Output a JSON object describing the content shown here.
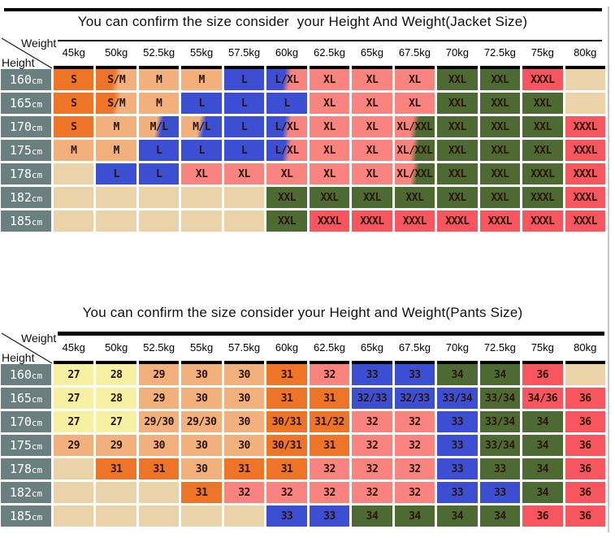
{
  "colors": {
    "orange": "#EE7428",
    "tan": "#F2B07C",
    "wheat": "#EBD3A9",
    "blue": "#3C4FD3",
    "pink": "#F9837E",
    "green": "#4D6A32",
    "red": "#F7565E",
    "yellow": "#F6F0A2",
    "header_gray": "#6A8080",
    "cell_text": "#2B150D",
    "line_black": "#000000"
  },
  "chart_data": [
    {
      "type": "table",
      "title": "You can confirm the size consider  your Height And Weight(Jacket Size)",
      "corner_labels": {
        "top": "Weight",
        "bottom": "Height"
      },
      "columns": [
        "45kg",
        "50kg",
        "52.5kg",
        "55kg",
        "57.5kg",
        "60kg",
        "62.5kg",
        "65kg",
        "67.5kg",
        "70kg",
        "72.5kg",
        "75kg",
        "80kg"
      ],
      "row_headers": [
        "160cm",
        "165cm",
        "170cm",
        "175cm",
        "178cm",
        "182cm",
        "185cm"
      ],
      "cells": [
        [
          [
            "S",
            "orange"
          ],
          [
            "S/M",
            "orange",
            "tan"
          ],
          [
            "M",
            "tan"
          ],
          [
            "M",
            "tan"
          ],
          [
            "L",
            "blue"
          ],
          [
            "L/XL",
            "blue",
            "pink"
          ],
          [
            "XL",
            "pink"
          ],
          [
            "XL",
            "pink"
          ],
          [
            "XL",
            "pink"
          ],
          [
            "XXL",
            "green"
          ],
          [
            "XXL",
            "green"
          ],
          [
            "XXXL",
            "red"
          ],
          [
            "",
            "wheat"
          ]
        ],
        [
          [
            "S",
            "orange"
          ],
          [
            "S/M",
            "orange",
            "tan"
          ],
          [
            "M",
            "tan"
          ],
          [
            "L",
            "blue"
          ],
          [
            "L",
            "blue"
          ],
          [
            "L",
            "blue"
          ],
          [
            "XL",
            "pink"
          ],
          [
            "XL",
            "pink"
          ],
          [
            "XL",
            "pink"
          ],
          [
            "XXL",
            "green"
          ],
          [
            "XXL",
            "green"
          ],
          [
            "XXL",
            "green"
          ],
          [
            "",
            "wheat"
          ]
        ],
        [
          [
            "S",
            "orange"
          ],
          [
            "M",
            "tan"
          ],
          [
            "M/L",
            "tan",
            "blue"
          ],
          [
            "M/L",
            "tan",
            "blue"
          ],
          [
            "L",
            "blue"
          ],
          [
            "L/XL",
            "blue",
            "pink"
          ],
          [
            "XL",
            "pink"
          ],
          [
            "XL",
            "pink"
          ],
          [
            "XL/XXL",
            "pink",
            "green"
          ],
          [
            "XXL",
            "green"
          ],
          [
            "XXL",
            "green"
          ],
          [
            "XXL",
            "green"
          ],
          [
            "XXXL",
            "red"
          ]
        ],
        [
          [
            "M",
            "tan"
          ],
          [
            "M",
            "tan"
          ],
          [
            "L",
            "blue"
          ],
          [
            "L",
            "blue"
          ],
          [
            "L",
            "blue"
          ],
          [
            "L/XL",
            "blue",
            "pink"
          ],
          [
            "XL",
            "pink"
          ],
          [
            "XL",
            "pink"
          ],
          [
            "XL/XXL",
            "pink",
            "green"
          ],
          [
            "XXL",
            "green"
          ],
          [
            "XXL",
            "green"
          ],
          [
            "XXL",
            "green"
          ],
          [
            "XXXL",
            "red"
          ]
        ],
        [
          [
            "",
            "wheat"
          ],
          [
            "L",
            "blue"
          ],
          [
            "L",
            "blue"
          ],
          [
            "XL",
            "pink"
          ],
          [
            "XL",
            "pink"
          ],
          [
            "XL",
            "pink"
          ],
          [
            "XL",
            "pink"
          ],
          [
            "XL",
            "pink"
          ],
          [
            "XL/XXL",
            "pink",
            "green"
          ],
          [
            "XXL",
            "green"
          ],
          [
            "XXL",
            "green"
          ],
          [
            "XXXL",
            "green"
          ],
          [
            "XXXL",
            "red"
          ]
        ],
        [
          [
            "",
            "wheat"
          ],
          [
            "",
            "wheat"
          ],
          [
            "",
            "wheat"
          ],
          [
            "",
            "wheat"
          ],
          [
            "",
            "wheat"
          ],
          [
            "XXL",
            "green"
          ],
          [
            "XXL",
            "green"
          ],
          [
            "XXL",
            "green"
          ],
          [
            "XXL",
            "green"
          ],
          [
            "XXL",
            "green"
          ],
          [
            "XXL",
            "green"
          ],
          [
            "XXXL",
            "green"
          ],
          [
            "XXXL",
            "red"
          ]
        ],
        [
          [
            "",
            "wheat"
          ],
          [
            "",
            "wheat"
          ],
          [
            "",
            "wheat"
          ],
          [
            "",
            "wheat"
          ],
          [
            "",
            "wheat"
          ],
          [
            "XXL",
            "green"
          ],
          [
            "XXXL",
            "red"
          ],
          [
            "XXXL",
            "red"
          ],
          [
            "XXXL",
            "red"
          ],
          [
            "XXXL",
            "red"
          ],
          [
            "XXXL",
            "red"
          ],
          [
            "XXXL",
            "red"
          ],
          [
            "XXXL",
            "red"
          ]
        ]
      ]
    },
    {
      "type": "table",
      "title": "You can confirm the size consider your Height and Weight(Pants Size)",
      "corner_labels": {
        "top": "Weight",
        "bottom": "Height"
      },
      "columns": [
        "45kg",
        "50kg",
        "52.5kg",
        "55kg",
        "57.5kg",
        "60kg",
        "62.5kg",
        "65kg",
        "67.5kg",
        "70kg",
        "72.5kg",
        "75kg",
        "80kg"
      ],
      "row_headers": [
        "160cm",
        "165cm",
        "170cm",
        "175cm",
        "178cm",
        "182cm",
        "185cm"
      ],
      "cells": [
        [
          [
            "27",
            "yellow"
          ],
          [
            "28",
            "yellow"
          ],
          [
            "29",
            "tan"
          ],
          [
            "30",
            "tan"
          ],
          [
            "30",
            "tan"
          ],
          [
            "31",
            "orange"
          ],
          [
            "32",
            "pink"
          ],
          [
            "33",
            "blue"
          ],
          [
            "33",
            "blue"
          ],
          [
            "34",
            "green"
          ],
          [
            "34",
            "green"
          ],
          [
            "36",
            "red"
          ],
          [
            "",
            "wheat"
          ]
        ],
        [
          [
            "27",
            "yellow"
          ],
          [
            "28",
            "yellow"
          ],
          [
            "29",
            "tan"
          ],
          [
            "30",
            "tan"
          ],
          [
            "30",
            "tan"
          ],
          [
            "31",
            "orange"
          ],
          [
            "31",
            "orange"
          ],
          [
            "32/33",
            "blue"
          ],
          [
            "32/33",
            "blue"
          ],
          [
            "33/34",
            "blue"
          ],
          [
            "33/34",
            "green"
          ],
          [
            "34/36",
            "red"
          ],
          [
            "36",
            "red"
          ]
        ],
        [
          [
            "27",
            "yellow"
          ],
          [
            "27",
            "yellow"
          ],
          [
            "29/30",
            "tan"
          ],
          [
            "29/30",
            "tan"
          ],
          [
            "30",
            "tan"
          ],
          [
            "30/31",
            "orange"
          ],
          [
            "31/32",
            "orange"
          ],
          [
            "32",
            "pink"
          ],
          [
            "32",
            "pink"
          ],
          [
            "33",
            "blue"
          ],
          [
            "33/34",
            "green"
          ],
          [
            "34",
            "green"
          ],
          [
            "36",
            "red"
          ]
        ],
        [
          [
            "29",
            "tan"
          ],
          [
            "29",
            "tan"
          ],
          [
            "30",
            "tan"
          ],
          [
            "30",
            "tan"
          ],
          [
            "30",
            "tan"
          ],
          [
            "30/31",
            "orange"
          ],
          [
            "31",
            "orange"
          ],
          [
            "32",
            "pink"
          ],
          [
            "32",
            "pink"
          ],
          [
            "33",
            "blue"
          ],
          [
            "33/34",
            "green"
          ],
          [
            "34",
            "green"
          ],
          [
            "36",
            "red"
          ]
        ],
        [
          [
            "",
            "wheat"
          ],
          [
            "31",
            "orange"
          ],
          [
            "31",
            "orange"
          ],
          [
            "30",
            "tan"
          ],
          [
            "31",
            "orange"
          ],
          [
            "31",
            "orange"
          ],
          [
            "32",
            "pink"
          ],
          [
            "32",
            "pink"
          ],
          [
            "32",
            "pink"
          ],
          [
            "33",
            "blue"
          ],
          [
            "33",
            "green"
          ],
          [
            "34",
            "green"
          ],
          [
            "36",
            "red"
          ]
        ],
        [
          [
            "",
            "wheat"
          ],
          [
            "",
            "wheat"
          ],
          [
            "",
            "wheat"
          ],
          [
            "31",
            "orange"
          ],
          [
            "32",
            "pink"
          ],
          [
            "32",
            "pink"
          ],
          [
            "32",
            "pink"
          ],
          [
            "32",
            "pink"
          ],
          [
            "32",
            "pink"
          ],
          [
            "33",
            "blue"
          ],
          [
            "33",
            "blue"
          ],
          [
            "34",
            "green"
          ],
          [
            "36",
            "red"
          ]
        ],
        [
          [
            "",
            "wheat"
          ],
          [
            "",
            "wheat"
          ],
          [
            "",
            "wheat"
          ],
          [
            "",
            "wheat"
          ],
          [
            "",
            "wheat"
          ],
          [
            "33",
            "blue"
          ],
          [
            "33",
            "blue"
          ],
          [
            "34",
            "green"
          ],
          [
            "34",
            "green"
          ],
          [
            "34",
            "green"
          ],
          [
            "34",
            "green"
          ],
          [
            "36",
            "red"
          ],
          [
            "36",
            "red"
          ]
        ]
      ]
    }
  ]
}
